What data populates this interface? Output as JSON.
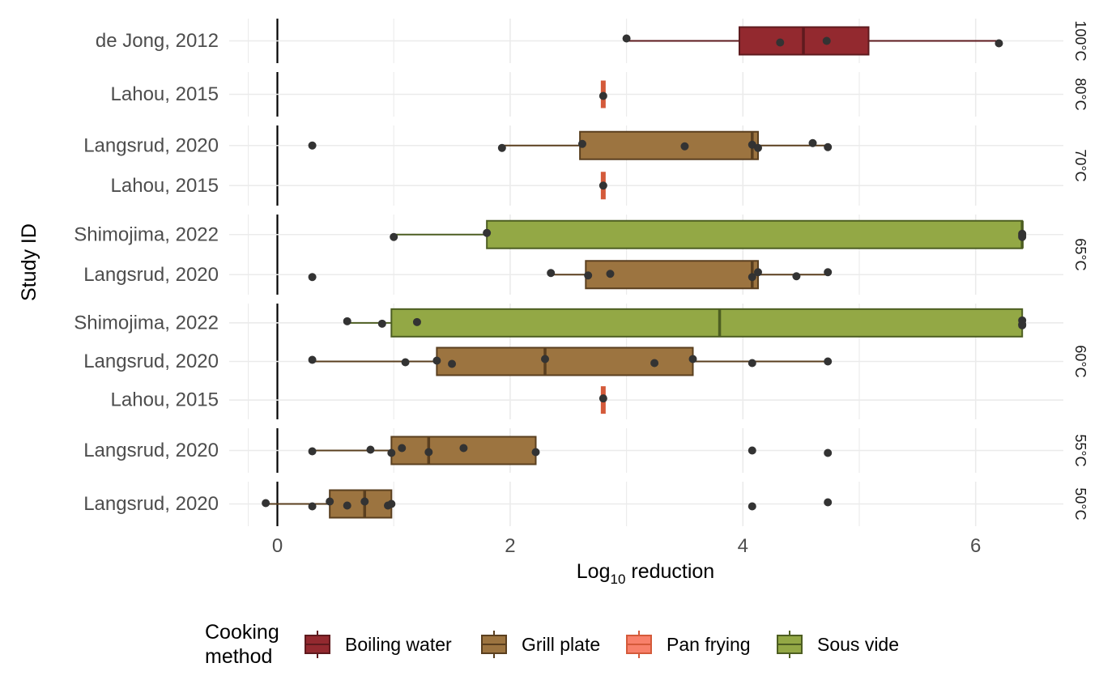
{
  "chart_data": {
    "type": "boxplot",
    "xlabel_prefix": "Log",
    "xlabel_subscript": "10",
    "xlabel_suffix": " reduction",
    "ylabel": "Study ID",
    "xlim": [
      -0.25,
      6.75
    ],
    "xticks": [
      0,
      2,
      4,
      6
    ],
    "grid": true,
    "legend": {
      "title_line1": "Cooking",
      "title_line2": "method",
      "position": "bottom",
      "items": [
        {
          "label": "Boiling water",
          "color": "#93292f",
          "border": "#5e1a1e"
        },
        {
          "label": "Grill plate",
          "color": "#9c7440",
          "border": "#5a3f1f"
        },
        {
          "label": "Pan frying",
          "color": "#f8806a",
          "border": "#d45a3a"
        },
        {
          "label": "Sous vide",
          "color": "#93a845",
          "border": "#4d5e22"
        }
      ]
    },
    "panels": [
      {
        "temp": "100°C",
        "rows": [
          {
            "study": "de Jong, 2012",
            "method": "Boiling water",
            "box": [
              3.0,
              3.97,
              4.52,
              5.08,
              6.2
            ],
            "points": [
              3.0,
              4.32,
              4.72,
              6.2
            ]
          }
        ]
      },
      {
        "temp": "80°C",
        "rows": [
          {
            "study": "Lahou, 2015",
            "method": "Pan frying",
            "box": [
              2.8,
              2.8,
              2.8,
              2.8,
              2.8
            ],
            "points": [
              2.8
            ]
          }
        ]
      },
      {
        "temp": "70°C",
        "rows": [
          {
            "study": "Langsrud, 2020",
            "method": "Grill plate",
            "box": [
              1.93,
              2.6,
              4.08,
              4.13,
              4.73
            ],
            "points": [
              0.3,
              1.93,
              2.62,
              3.5,
              4.08,
              4.13,
              4.6,
              4.73
            ]
          },
          {
            "study": "Lahou, 2015",
            "method": "Pan frying",
            "box": [
              2.8,
              2.8,
              2.8,
              2.8,
              2.8
            ],
            "points": [
              2.8
            ]
          }
        ]
      },
      {
        "temp": "65°C",
        "rows": [
          {
            "study": "Shimojima, 2022",
            "method": "Sous vide",
            "box": [
              1.0,
              1.8,
              6.4,
              6.4,
              6.4
            ],
            "points": [
              1.0,
              1.8,
              6.4,
              6.4,
              6.4
            ]
          },
          {
            "study": "Langsrud, 2020",
            "method": "Grill plate",
            "box": [
              2.35,
              2.65,
              4.08,
              4.13,
              4.73
            ],
            "points": [
              0.3,
              2.35,
              2.67,
              2.86,
              4.08,
              4.13,
              4.46,
              4.73
            ]
          }
        ]
      },
      {
        "temp": "60°C",
        "rows": [
          {
            "study": "Shimojima, 2022",
            "method": "Sous vide",
            "box": [
              0.6,
              0.98,
              3.8,
              6.4,
              6.4
            ],
            "points": [
              0.6,
              0.9,
              1.2,
              6.4,
              6.4,
              6.4
            ]
          },
          {
            "study": "Langsrud, 2020",
            "method": "Grill plate",
            "box": [
              0.3,
              1.37,
              2.3,
              3.57,
              4.73
            ],
            "points": [
              0.3,
              1.1,
              1.37,
              1.5,
              2.3,
              3.24,
              3.57,
              4.08,
              4.73
            ]
          },
          {
            "study": "Lahou, 2015",
            "method": "Pan frying",
            "box": [
              2.8,
              2.8,
              2.8,
              2.8,
              2.8
            ],
            "points": [
              2.8
            ]
          }
        ]
      },
      {
        "temp": "55°C",
        "rows": [
          {
            "study": "Langsrud, 2020",
            "method": "Grill plate",
            "box": [
              0.3,
              0.98,
              1.3,
              2.22,
              2.22
            ],
            "points": [
              0.3,
              0.8,
              0.98,
              1.07,
              1.3,
              1.6,
              2.22,
              4.08,
              4.73
            ]
          }
        ]
      },
      {
        "temp": "50°C",
        "rows": [
          {
            "study": "Langsrud, 2020",
            "method": "Grill plate",
            "box": [
              -0.1,
              0.45,
              0.75,
              0.98,
              0.98
            ],
            "points": [
              -0.1,
              0.3,
              0.45,
              0.6,
              0.75,
              0.95,
              0.98,
              4.08,
              4.73
            ]
          }
        ]
      }
    ]
  }
}
